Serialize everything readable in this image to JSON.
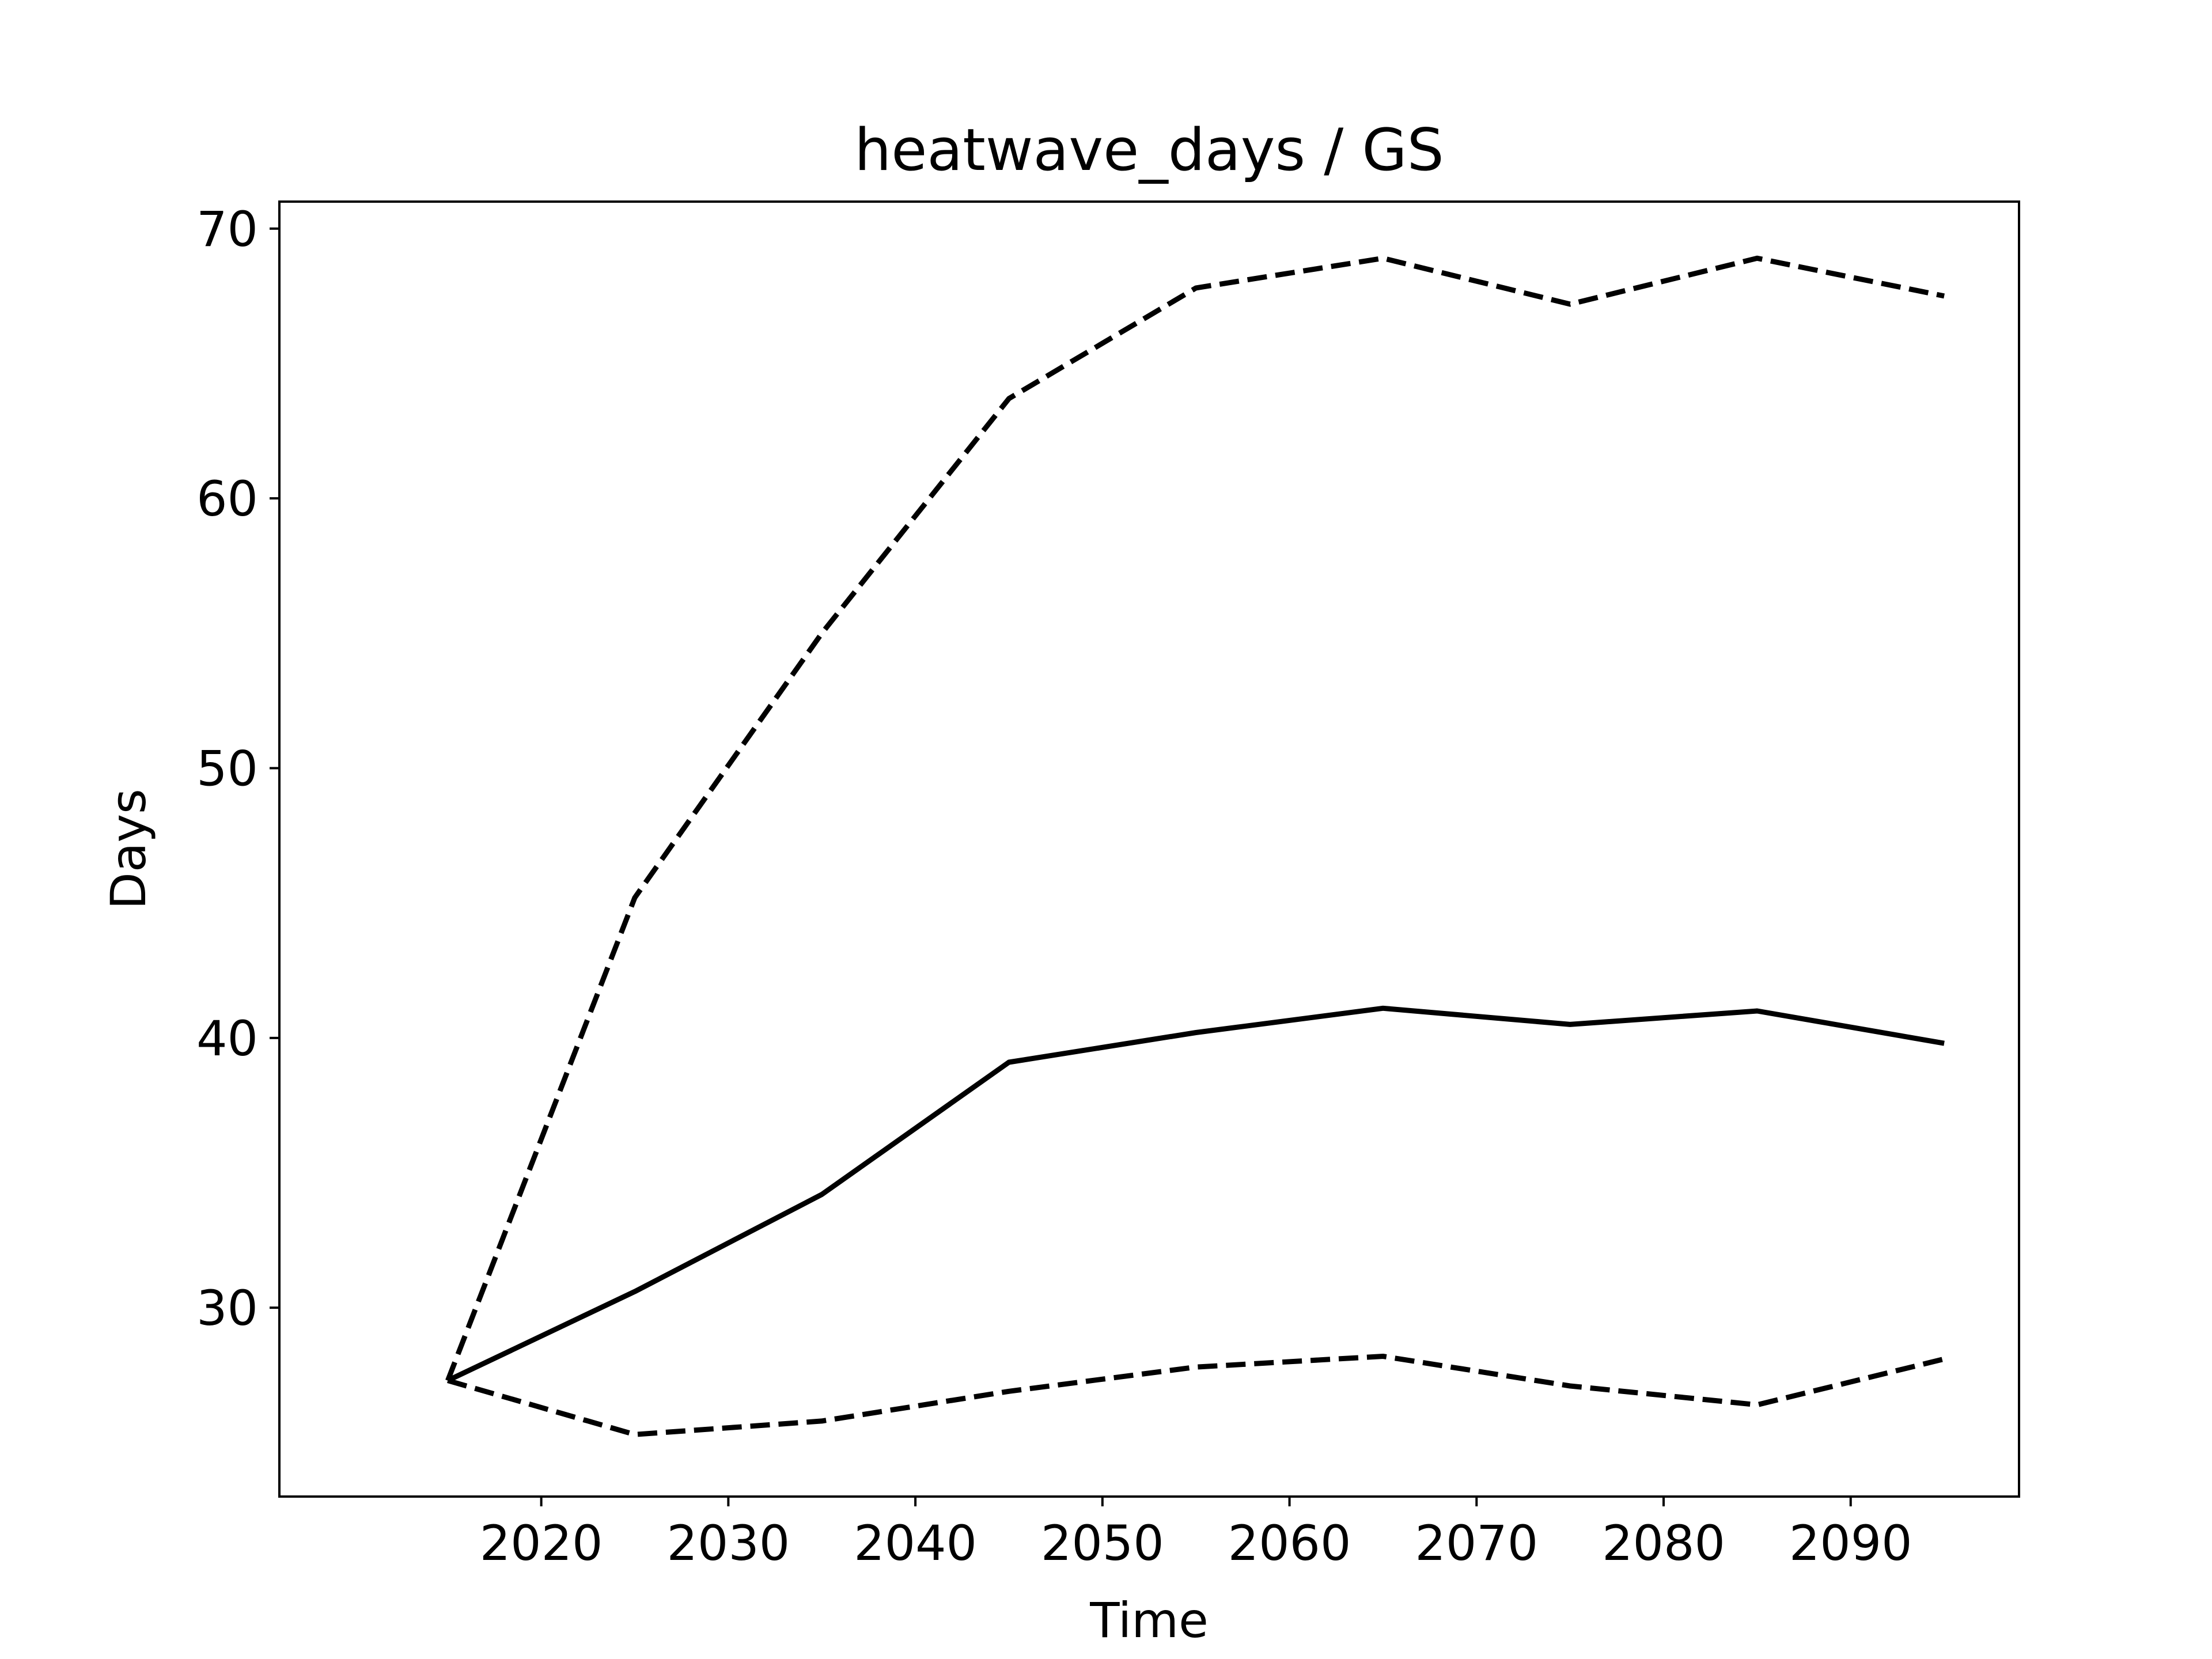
{
  "chart_data": {
    "type": "line",
    "title": "heatwave_days / GS",
    "xlabel": "Time",
    "ylabel": "Days",
    "x": [
      2015,
      2025,
      2035,
      2045,
      2055,
      2065,
      2075,
      2085,
      2095
    ],
    "xlim": [
      2006,
      2099
    ],
    "ylim": [
      23,
      71
    ],
    "xticks": [
      2020,
      2030,
      2040,
      2050,
      2060,
      2070,
      2080,
      2090
    ],
    "yticks": [
      30,
      40,
      50,
      60,
      70
    ],
    "grid": false,
    "series": [
      {
        "style": "solid",
        "color": "#000000",
        "values": [
          27.3,
          30.6,
          34.2,
          39.1,
          40.2,
          41.1,
          40.5,
          41.0,
          39.8
        ]
      },
      {
        "style": "dashed",
        "color": "#000000",
        "values": [
          27.3,
          45.2,
          55.0,
          63.7,
          67.8,
          68.9,
          67.2,
          68.9,
          67.5
        ]
      },
      {
        "style": "dashed",
        "color": "#000000",
        "values": [
          27.3,
          25.3,
          25.8,
          26.9,
          27.8,
          28.2,
          27.1,
          26.4,
          28.1
        ]
      }
    ]
  }
}
